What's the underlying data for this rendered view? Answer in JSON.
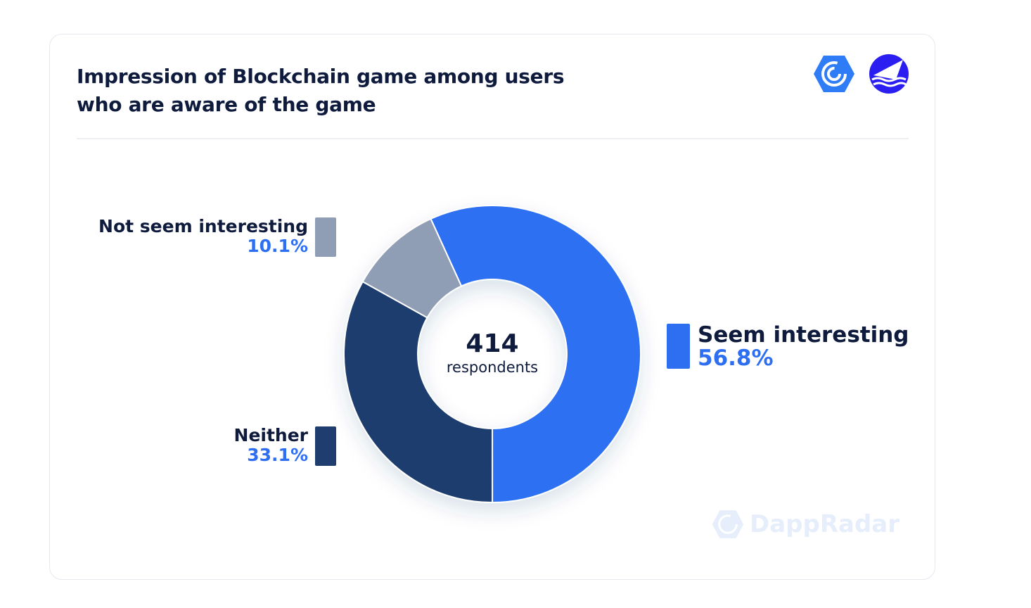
{
  "chart_data": {
    "type": "pie",
    "title": "Impression of Blockchain game among users who are aware of the game",
    "title_lines": [
      "Impression of Blockchain game among users",
      "who are aware of the game"
    ],
    "donut": true,
    "center_value": "414",
    "center_label": "respondents",
    "categories": [
      "Seem interesting",
      "Neither",
      "Not seem interesting"
    ],
    "values": [
      56.8,
      33.1,
      10.1
    ],
    "value_labels": [
      "56.8%",
      "33.1%",
      "10.1%"
    ],
    "colors": [
      "#2e6ff2",
      "#1f3d6e",
      "#8f9db5"
    ]
  },
  "watermark": "DappRadar",
  "logos": [
    "dappradar-logo-icon",
    "partner-logo-icon"
  ]
}
